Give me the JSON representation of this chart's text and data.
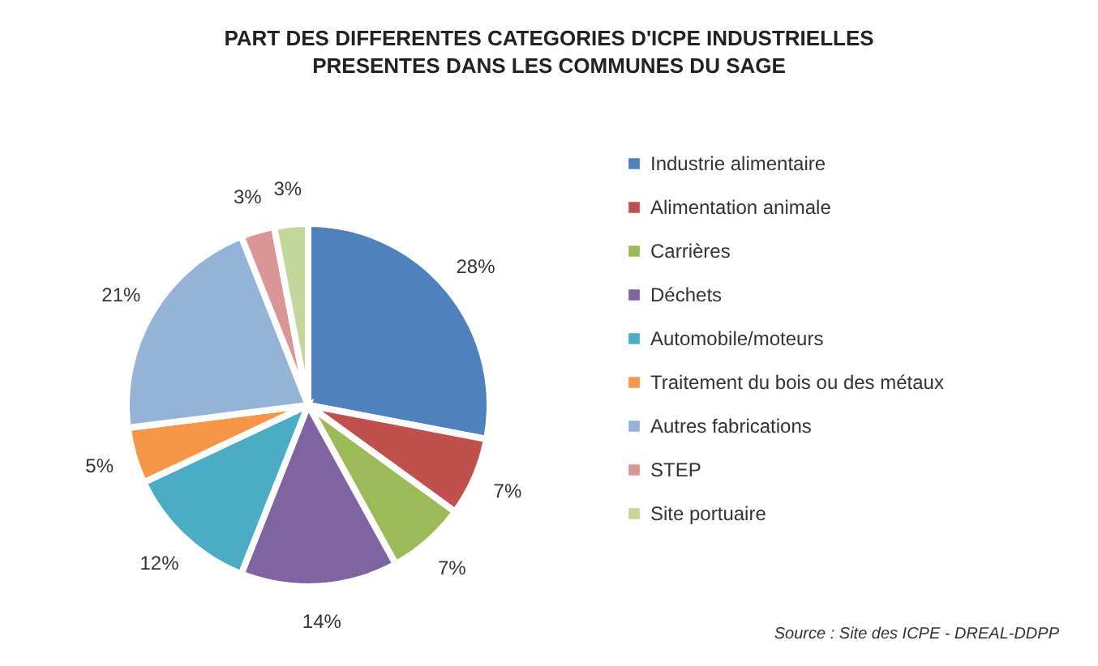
{
  "chart_data": {
    "type": "pie",
    "title": "PART DES DIFFERENTES CATEGORIES D'ICPE INDUSTRIELLES\nPRESENTES DANS LES COMMUNES DU SAGE",
    "categories": [
      "Industrie alimentaire",
      "Alimentation animale",
      "Carrières",
      "Déchets",
      "Automobile/moteurs",
      "Traitement du bois ou des métaux",
      "Autres fabrications",
      "STEP",
      "Site portuaire"
    ],
    "values": [
      28,
      7,
      7,
      14,
      12,
      5,
      21,
      3,
      3
    ],
    "colors": [
      "#4f81bd",
      "#c0504d",
      "#9bbb59",
      "#8064a2",
      "#4bacc6",
      "#f79646",
      "#95b3d7",
      "#d99694",
      "#c3d69b"
    ],
    "value_labels": [
      "28%",
      "7%",
      "7%",
      "14%",
      "12%",
      "5%",
      "21%",
      "3%",
      "3%"
    ],
    "legend": "right",
    "annotations": [
      "Source : Site des ICPE - DREAL-DDPP"
    ]
  }
}
